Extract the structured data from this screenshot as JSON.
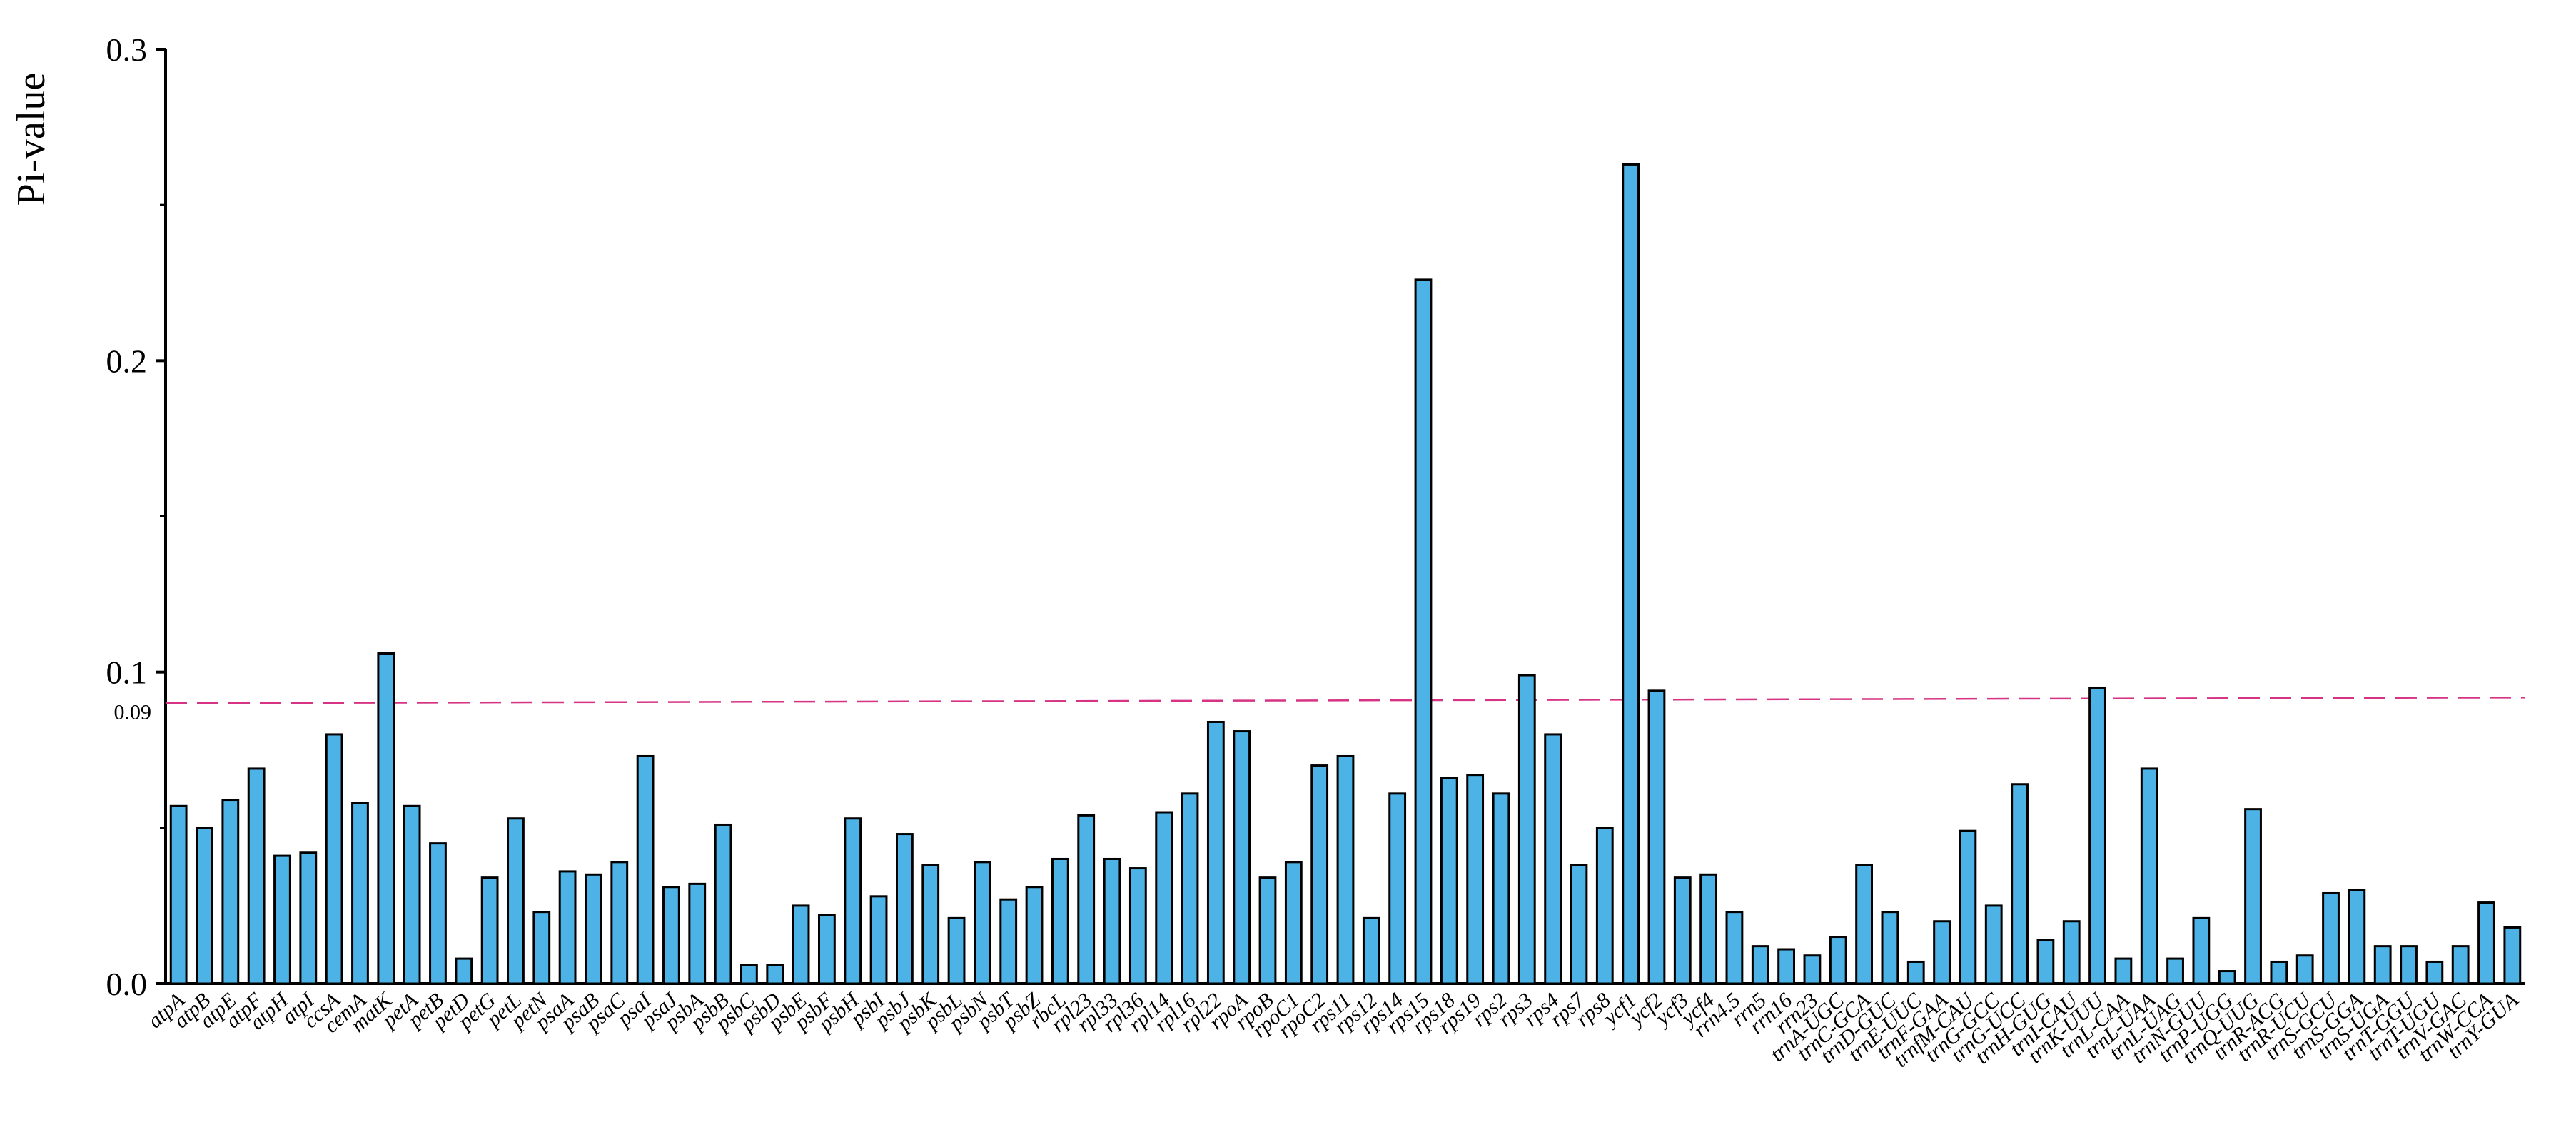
{
  "chart_data": {
    "type": "bar",
    "ylabel": "Pi-value",
    "xlabel": "",
    "ylim": [
      0,
      0.3
    ],
    "yticks": [
      "0.0",
      "0.1",
      "0.2",
      "0.3"
    ],
    "reference_line": {
      "value": 0.09,
      "label": "0.09",
      "color": "#d63384",
      "style": "dashed"
    },
    "bar_color": "#4db3e6",
    "bar_edge_color": "#000000",
    "categories": [
      "atpA",
      "atpB",
      "atpE",
      "atpF",
      "atpH",
      "atpI",
      "ccsA",
      "cemA",
      "matK",
      "petA",
      "petB",
      "petD",
      "petG",
      "petL",
      "petN",
      "psaA",
      "psaB",
      "psaC",
      "psaI",
      "psaJ",
      "psbA",
      "psbB",
      "psbC",
      "psbD",
      "psbE",
      "psbF",
      "psbH",
      "psbI",
      "psbJ",
      "psbK",
      "psbL",
      "psbN",
      "psbT",
      "psbZ",
      "rbcL",
      "rpl23",
      "rpl33",
      "rpl36",
      "rpl14",
      "rpl16",
      "rpl22",
      "rpoA",
      "rpoB",
      "rpoC1",
      "rpoC2",
      "rps11",
      "rps12",
      "rps14",
      "rps15",
      "rps18",
      "rps19",
      "rps2",
      "rps3",
      "rps4",
      "rps7",
      "rps8",
      "ycf1",
      "ycf2",
      "ycf3",
      "ycf4",
      "rrn4.5",
      "rrn5",
      "rrn16",
      "rrn23",
      "trnA-UGC",
      "trnC-GCA",
      "trnD-GUC",
      "trnE-UUC",
      "trnF-GAA",
      "trnfM-CAU",
      "trnG-GCC",
      "trnG-UCC",
      "trnH-GUG",
      "trnI-CAU",
      "trnK-UUU",
      "trnL-CAA",
      "trnL-UAA",
      "trnL-UAG",
      "trnN-GUU",
      "trnP-UGG",
      "trnQ-UUG",
      "trnR-ACG",
      "trnR-UCU",
      "trnS-GCU",
      "trnS-GGA",
      "trnS-UGA",
      "trnT-GGU",
      "trnT-UGU",
      "trnV-GAC",
      "trnW-CCA",
      "trnY-GUA"
    ],
    "values": [
      0.057,
      0.05,
      0.059,
      0.069,
      0.041,
      0.042,
      0.08,
      0.058,
      0.106,
      0.057,
      0.045,
      0.008,
      0.034,
      0.053,
      0.023,
      0.036,
      0.035,
      0.039,
      0.073,
      0.031,
      0.032,
      0.051,
      0.006,
      0.006,
      0.025,
      0.022,
      0.053,
      0.028,
      0.048,
      0.038,
      0.021,
      0.039,
      0.027,
      0.031,
      0.04,
      0.054,
      0.04,
      0.037,
      0.055,
      0.061,
      0.084,
      0.081,
      0.034,
      0.039,
      0.07,
      0.073,
      0.021,
      0.061,
      0.226,
      0.066,
      0.067,
      0.061,
      0.099,
      0.08,
      0.038,
      0.05,
      0.263,
      0.094,
      0.034,
      0.035,
      0.023,
      0.012,
      0.011,
      0.009,
      0.015,
      0.038,
      0.023,
      0.007,
      0.02,
      0.049,
      0.025,
      0.064,
      0.014,
      0.02,
      0.095,
      0.008,
      0.069,
      0.008,
      0.021,
      0.004,
      0.056,
      0.007,
      0.009,
      0.029,
      0.03,
      0.012,
      0.012,
      0.007,
      0.012,
      0.026,
      0.018
    ]
  }
}
